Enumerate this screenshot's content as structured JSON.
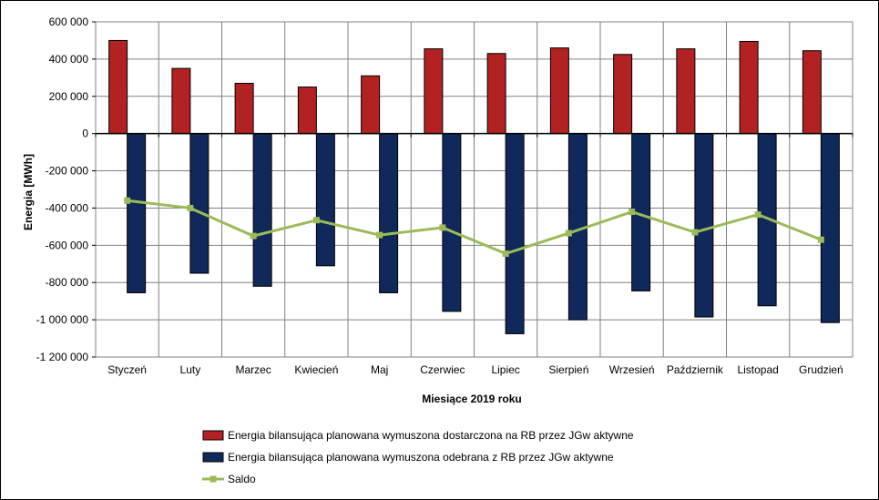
{
  "chart_data": {
    "type": "bar",
    "xlabel": "Miesiące 2019  roku",
    "ylabel": "Energia [MWh]",
    "ylim": [
      -1200000,
      600000
    ],
    "yticks": [
      600000,
      400000,
      200000,
      0,
      -200000,
      -400000,
      -600000,
      -800000,
      -1000000,
      -1200000
    ],
    "ytick_labels": [
      "600 000",
      "400 000",
      "200 000",
      "0",
      "-200 000",
      "-400 000",
      "-600 000",
      "-800 000",
      "-1 000 000",
      "-1 200 000"
    ],
    "categories": [
      "Styczeń",
      "Luty",
      "Marzec",
      "Kwiecień",
      "Maj",
      "Czerwiec",
      "Lipiec",
      "Sierpień",
      "Wrzesień",
      "Październik",
      "Listopad",
      "Grudzień"
    ],
    "grid": true,
    "legend_position": "bottom",
    "series": [
      {
        "name": "Energia bilansująca planowana wymuszona dostarczona na RB przez JGw aktywne",
        "type": "bar",
        "color": "#b22222",
        "values": [
          500000,
          350000,
          270000,
          250000,
          310000,
          455000,
          430000,
          460000,
          425000,
          455000,
          495000,
          445000
        ]
      },
      {
        "name": "Energia bilansująca planowana wymuszona odebrana z RB przez JGw aktywne",
        "type": "bar",
        "color": "#10285a",
        "values": [
          -855000,
          -750000,
          -820000,
          -710000,
          -855000,
          -955000,
          -1075000,
          -1000000,
          -845000,
          -985000,
          -925000,
          -1015000
        ]
      },
      {
        "name": "Saldo",
        "type": "line",
        "color": "#9bbb59",
        "values": [
          -360000,
          -400000,
          -550000,
          -465000,
          -545000,
          -505000,
          -645000,
          -535000,
          -420000,
          -530000,
          -435000,
          -570000
        ]
      }
    ]
  }
}
